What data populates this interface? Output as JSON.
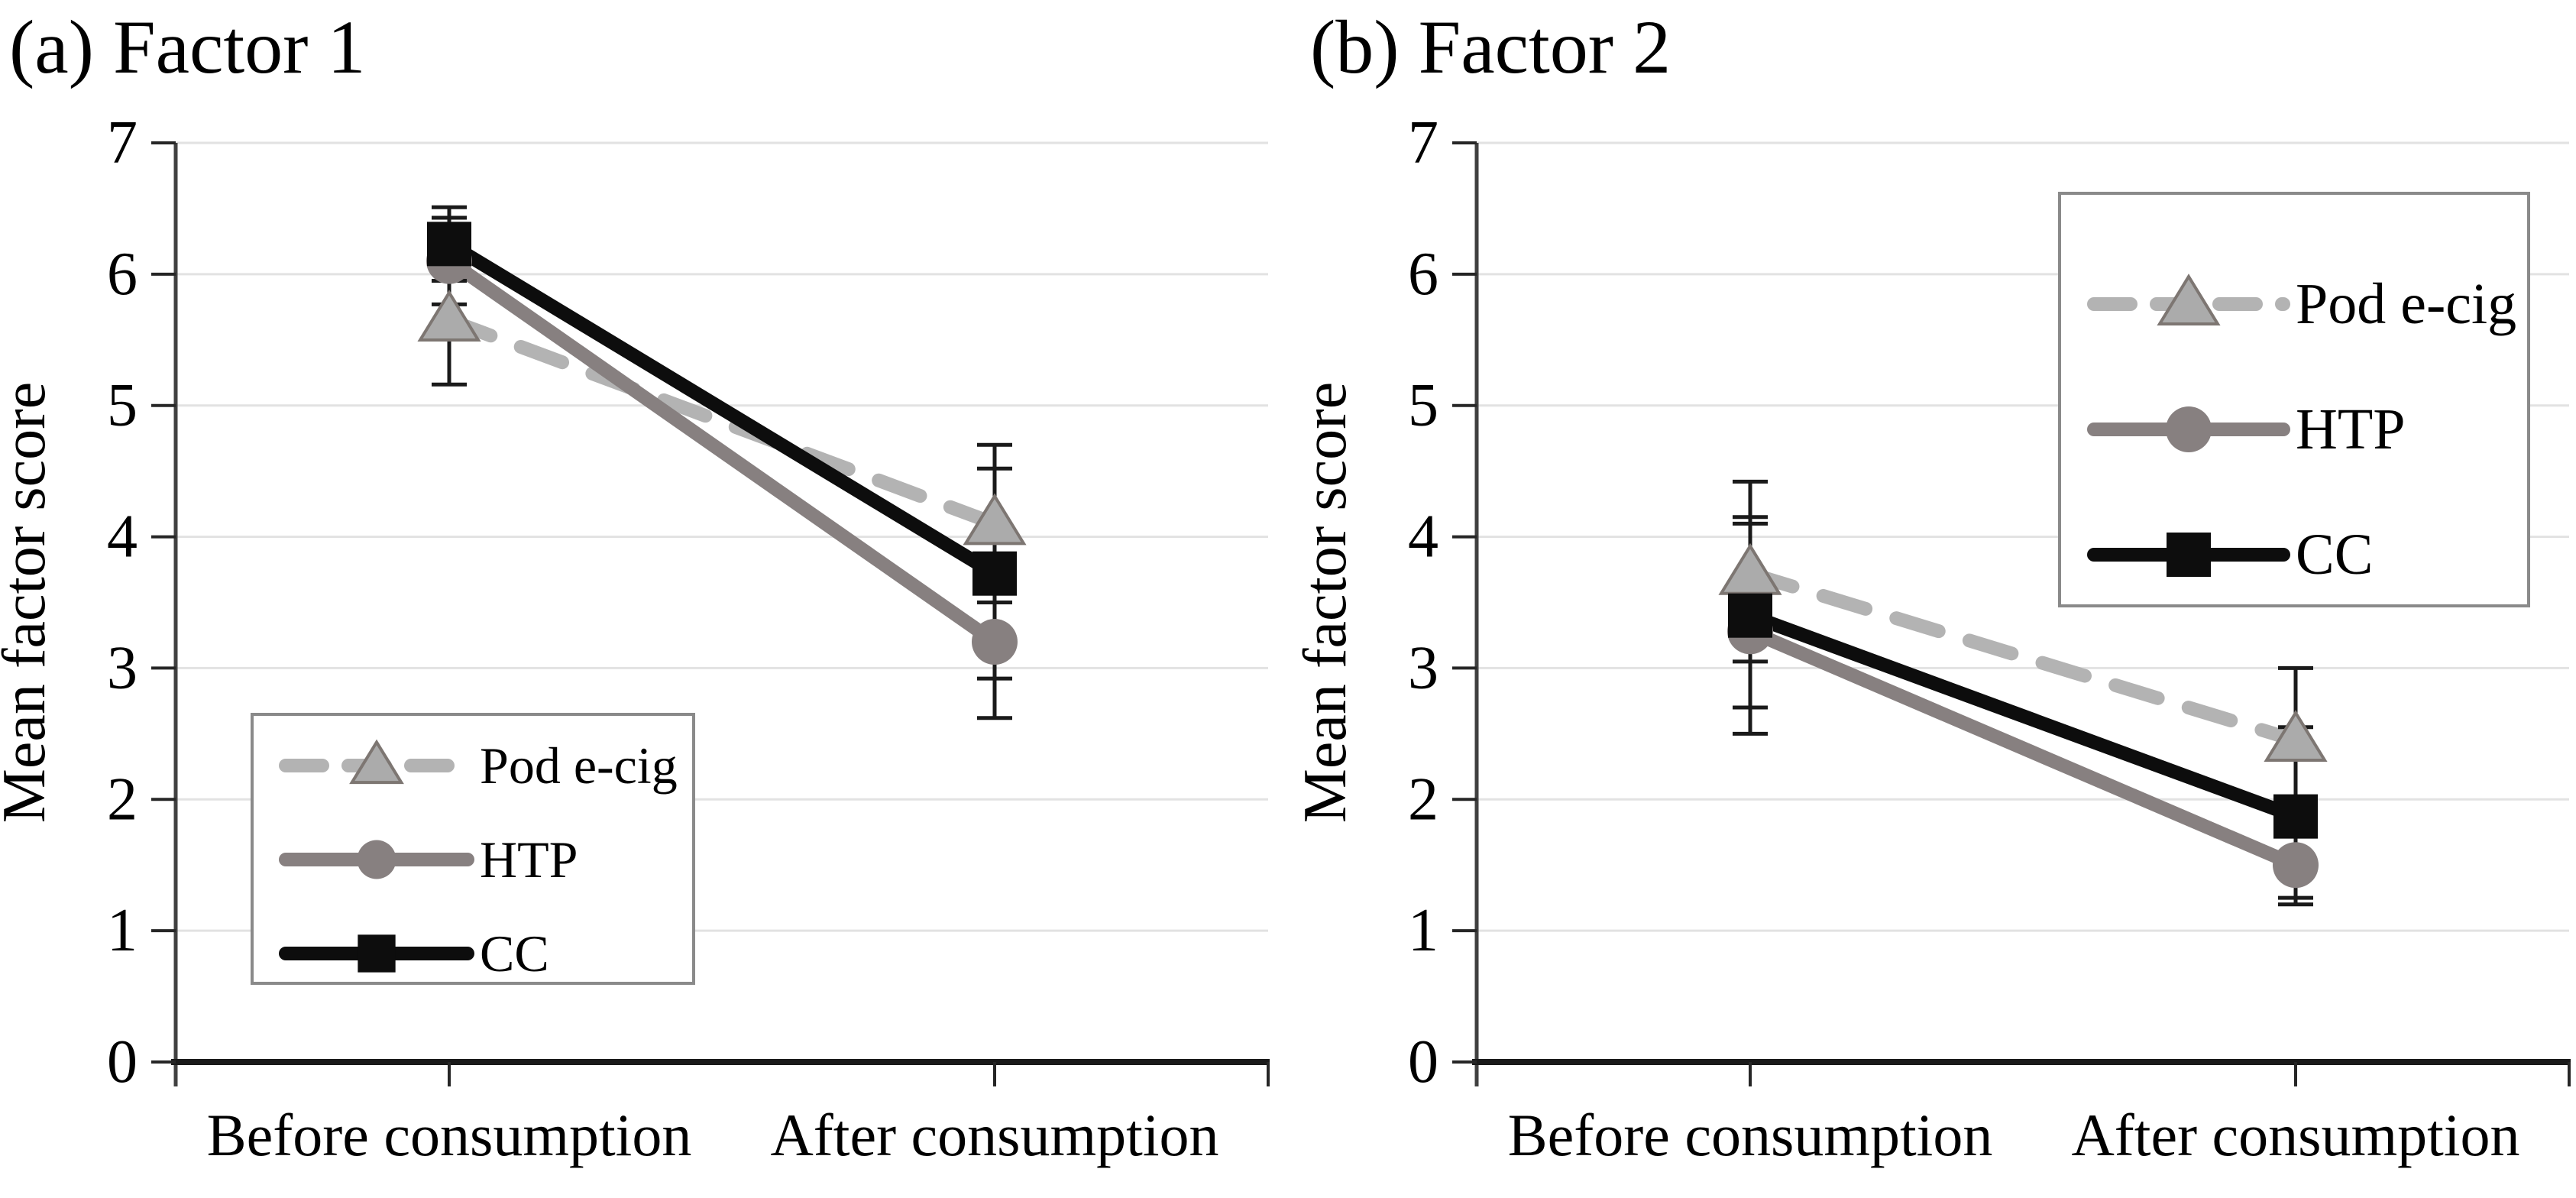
{
  "figure": {
    "background": "#ffffff",
    "description": "Two-panel line chart of mean factor scores before and after consumption"
  },
  "colors": {
    "grid": "#e2e2e2",
    "x_axis": "#1a1a1a",
    "y_axis": "#404040",
    "tick": "#262626",
    "error_bar": "#1a1a1a",
    "legend_border": "#8a8a8a",
    "legend_background": "#ffffff",
    "text": "#000000"
  },
  "chart_data": [
    {
      "id": "a",
      "type": "line",
      "title": "(a) Factor 1",
      "ylabel": "Mean factor score",
      "categories": [
        "Before consumption",
        "After consumption"
      ],
      "ylim": [
        0,
        7
      ],
      "ytick_labels": [
        "0",
        "1",
        "2",
        "3",
        "4",
        "5",
        "6",
        "7"
      ],
      "grid": true,
      "legend_position": "inside-bottom-left",
      "series": [
        {
          "name": "Pod e-cig",
          "line_style": "dashed",
          "marker": "triangle",
          "color": "#b3b3b3",
          "marker_fill": "#ababab",
          "marker_stroke": "#7d7672",
          "values": [
            5.65,
            4.1
          ],
          "error_low": [
            5.16,
            3.5
          ],
          "error_high": [
            6.14,
            4.7
          ]
        },
        {
          "name": "HTP",
          "line_style": "solid",
          "marker": "circle",
          "color": "#878080",
          "marker_fill": "#878080",
          "marker_stroke": "#878080",
          "values": [
            6.1,
            3.2
          ],
          "error_low": [
            5.77,
            2.62
          ],
          "error_high": [
            6.43,
            3.78
          ]
        },
        {
          "name": "CC",
          "line_style": "solid",
          "marker": "square",
          "color": "#0d0d0d",
          "marker_fill": "#0d0d0d",
          "marker_stroke": "#0d0d0d",
          "values": [
            6.23,
            3.72
          ],
          "error_low": [
            5.95,
            2.92
          ],
          "error_high": [
            6.51,
            4.52
          ]
        }
      ]
    },
    {
      "id": "b",
      "type": "line",
      "title": "(b) Factor 2",
      "ylabel": "Mean factor score",
      "categories": [
        "Before consumption",
        "After consumption"
      ],
      "ylim": [
        0,
        7
      ],
      "ytick_labels": [
        "0",
        "1",
        "2",
        "3",
        "4",
        "5",
        "6",
        "7"
      ],
      "grid": true,
      "legend_position": "inside-top-right",
      "series": [
        {
          "name": "Pod e-cig",
          "line_style": "dashed",
          "marker": "triangle",
          "color": "#b3b3b3",
          "marker_fill": "#ababab",
          "marker_stroke": "#7d7672",
          "values": [
            3.72,
            2.45
          ],
          "error_low": [
            3.05,
            1.9
          ],
          "error_high": [
            4.42,
            3.0
          ]
        },
        {
          "name": "HTP",
          "line_style": "solid",
          "marker": "circle",
          "color": "#878080",
          "marker_fill": "#878080",
          "marker_stroke": "#878080",
          "values": [
            3.28,
            1.5
          ],
          "error_low": [
            2.5,
            1.25
          ],
          "error_high": [
            4.1,
            1.8
          ]
        },
        {
          "name": "CC",
          "line_style": "solid",
          "marker": "square",
          "color": "#0d0d0d",
          "marker_fill": "#0d0d0d",
          "marker_stroke": "#0d0d0d",
          "values": [
            3.4,
            1.87
          ],
          "error_low": [
            2.7,
            1.2
          ],
          "error_high": [
            4.15,
            2.55
          ]
        }
      ]
    }
  ]
}
